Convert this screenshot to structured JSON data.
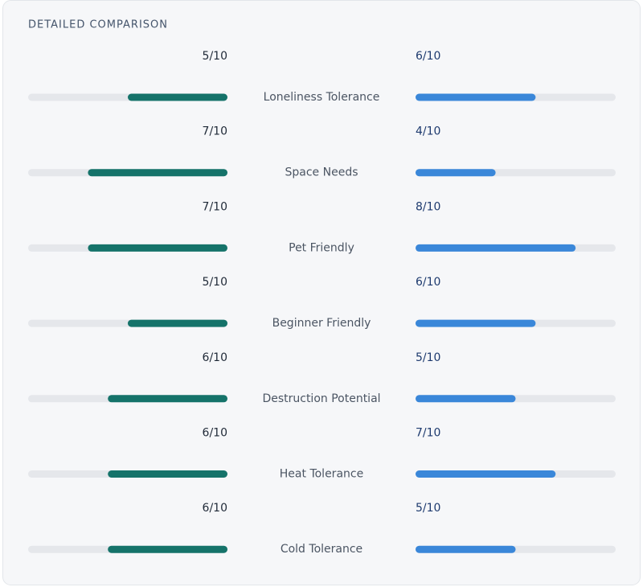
{
  "title": "DETAILED COMPARISON",
  "scale": {
    "max": 10
  },
  "rows": [
    {
      "label": "Loneliness Tolerance",
      "left": {
        "value": 5,
        "label": "5/10"
      },
      "right": {
        "value": 6,
        "label": "6/10"
      }
    },
    {
      "label": "Space Needs",
      "left": {
        "value": 7,
        "label": "7/10"
      },
      "right": {
        "value": 4,
        "label": "4/10"
      }
    },
    {
      "label": "Pet Friendly",
      "left": {
        "value": 7,
        "label": "7/10"
      },
      "right": {
        "value": 8,
        "label": "8/10"
      }
    },
    {
      "label": "Beginner Friendly",
      "left": {
        "value": 5,
        "label": "5/10"
      },
      "right": {
        "value": 6,
        "label": "6/10"
      }
    },
    {
      "label": "Destruction Potential",
      "left": {
        "value": 6,
        "label": "6/10"
      },
      "right": {
        "value": 5,
        "label": "5/10"
      }
    },
    {
      "label": "Heat Tolerance",
      "left": {
        "value": 6,
        "label": "6/10"
      },
      "right": {
        "value": 7,
        "label": "7/10"
      }
    },
    {
      "label": "Cold Tolerance",
      "left": {
        "value": 6,
        "label": "6/10"
      },
      "right": {
        "value": 5,
        "label": "5/10"
      }
    }
  ]
}
